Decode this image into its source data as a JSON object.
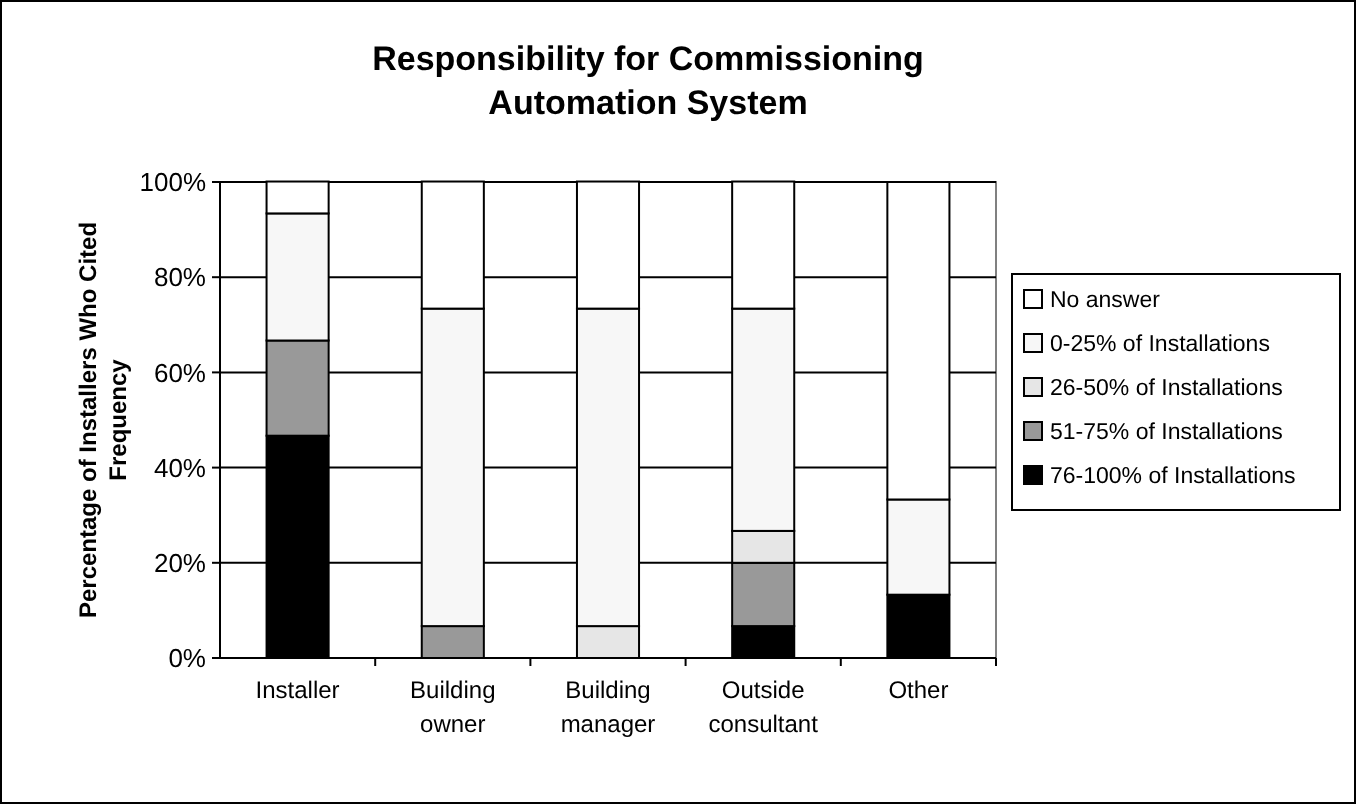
{
  "chart_data": {
    "type": "bar",
    "stacked": true,
    "title": "Responsibility for Commissioning Automation System",
    "ylabel": "Percentage of Installers Who Cited Frequency",
    "categories": [
      "Installer",
      "Building owner",
      "Building manager",
      "Outside consultant",
      "Other"
    ],
    "series": [
      {
        "name": "76-100% of Installations",
        "color": "#000000",
        "values": [
          46.7,
          0,
          0,
          6.7,
          13.3
        ]
      },
      {
        "name": "51-75% of Installations",
        "color": "#999999",
        "values": [
          20,
          6.7,
          0,
          13.3,
          0
        ]
      },
      {
        "name": "26-50% of Installations",
        "color": "#e6e6e6",
        "values": [
          0,
          0,
          6.7,
          6.7,
          0
        ]
      },
      {
        "name": "0-25% of Installations",
        "color": "#f7f7f7",
        "values": [
          26.7,
          66.7,
          66.7,
          46.7,
          20
        ]
      },
      {
        "name": "No answer",
        "color": "#ffffff",
        "values": [
          6.7,
          26.7,
          26.7,
          26.7,
          66.7
        ]
      }
    ],
    "ylim": [
      0,
      100
    ],
    "yticks": [
      {
        "value": 0,
        "label": "0%"
      },
      {
        "value": 20,
        "label": "20%"
      },
      {
        "value": 40,
        "label": "40%"
      },
      {
        "value": 60,
        "label": "60%"
      },
      {
        "value": 80,
        "label": "80%"
      },
      {
        "value": 100,
        "label": "100%"
      }
    ],
    "grid": "y",
    "legend": "right"
  }
}
